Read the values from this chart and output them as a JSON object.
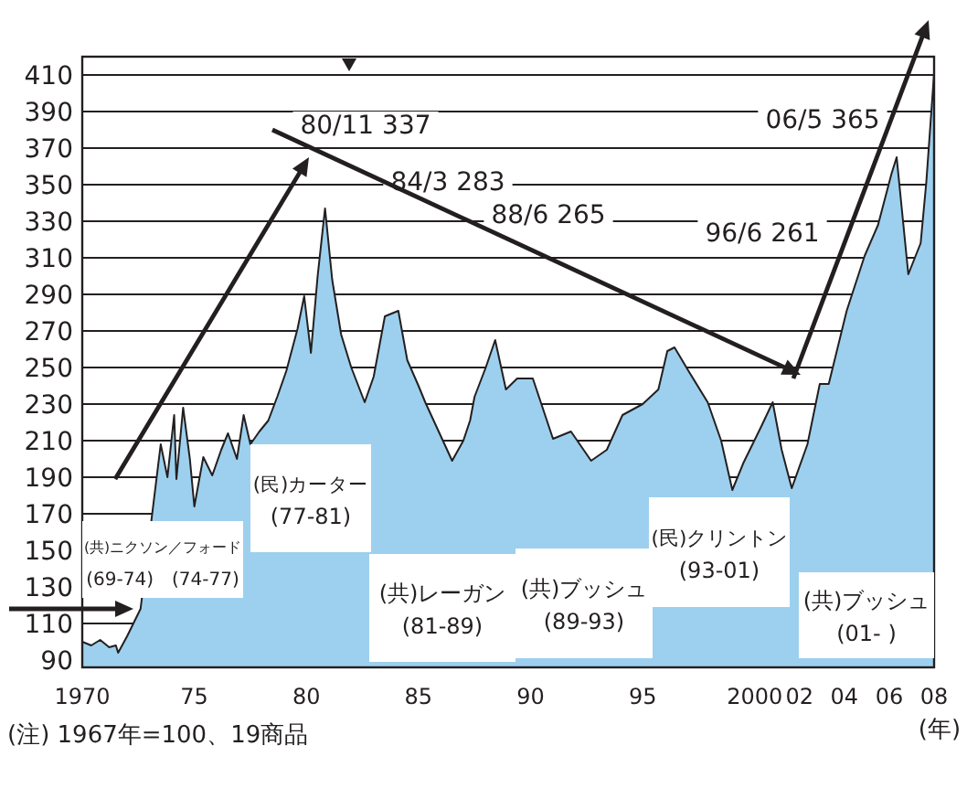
{
  "chart_data": {
    "type": "area",
    "xlabel": "(年)",
    "annotations": [
      "80/11 337",
      "84/3 283",
      "88/6 265",
      "96/6 261",
      "06/5 365",
      "(共)ニクソン／フォード\n(69-74)　(74-77)",
      "(民)カーター\n(77-81)",
      "(共)レーガン\n(81-89)",
      "(共)ブッシュ\n(89-93)",
      "(民)クリントン\n(93-01)",
      "(共)ブッシュ\n(01- )",
      "(注) 1967年=100、19商品"
    ],
    "x": [
      1970.0,
      1970.4,
      1970.8,
      1971.2,
      1971.5,
      1971.6,
      1972.0,
      1972.6,
      1973.5,
      1973.8,
      1974.1,
      1974.2,
      1974.5,
      1974.8,
      1975.0,
      1975.4,
      1975.8,
      1976.2,
      1976.5,
      1976.9,
      1977.2,
      1977.5,
      1977.9,
      1978.3,
      1978.7,
      1979.1,
      1979.6,
      1979.9,
      1980.2,
      1980.5,
      1980.83,
      1981.15,
      1981.55,
      1982.0,
      1982.6,
      1983.0,
      1983.5,
      1984.1,
      1984.5,
      1985.0,
      1985.3,
      1985.9,
      1986.5,
      1987.0,
      1987.3,
      1987.5,
      1988.0,
      1988.42,
      1988.9,
      1989.4,
      1990.1,
      1991.0,
      1991.8,
      1992.7,
      1993.4,
      1994.1,
      1995.0,
      1995.7,
      1996.1,
      1996.42,
      1997.05,
      1997.9,
      1998.5,
      1999.0,
      1999.5,
      2000.3,
      2000.8,
      2001.2,
      2001.65,
      2002.35,
      2002.9,
      2003.3,
      2004.1,
      2004.9,
      2005.5,
      2006.1,
      2006.33,
      2006.85,
      2007.4,
      2007.65,
      2008.0
    ],
    "series": [
      {
        "color": "#9dd0ee",
        "values": [
          100,
          98,
          101,
          97,
          98,
          94,
          103,
          118,
          208,
          190,
          224,
          189,
          228,
          200,
          174,
          201,
          191,
          205,
          214,
          200,
          224,
          208,
          215,
          221,
          234,
          248,
          271,
          289,
          258,
          300,
          337,
          298,
          268,
          250,
          231,
          245,
          278,
          281,
          254,
          240,
          231,
          215,
          199,
          210,
          221,
          234,
          250,
          265,
          238,
          244,
          244,
          211,
          215,
          199,
          205,
          224,
          230,
          238,
          259,
          261,
          248,
          231,
          210,
          183,
          198,
          218,
          231,
          205,
          184,
          208,
          241,
          241,
          281,
          311,
          328,
          356,
          365,
          301,
          318,
          351,
          411
        ]
      }
    ],
    "xlim": [
      1970,
      2008
    ],
    "ylim": [
      86,
      420
    ],
    "xticks": [
      {
        "value": 1970,
        "label": "1970"
      },
      {
        "value": 1975,
        "label": "75"
      },
      {
        "value": 1980,
        "label": "80"
      },
      {
        "value": 1985,
        "label": "85"
      },
      {
        "value": 1990,
        "label": "90"
      },
      {
        "value": 1995,
        "label": "95"
      },
      {
        "value": 2000,
        "label": "2000"
      },
      {
        "value": 2002,
        "label": "02"
      },
      {
        "value": 2004,
        "label": "04"
      },
      {
        "value": 2006,
        "label": "06"
      },
      {
        "value": 2008,
        "label": "08"
      }
    ],
    "yticks": [
      90,
      110,
      130,
      150,
      170,
      190,
      210,
      230,
      250,
      270,
      290,
      310,
      330,
      350,
      370,
      390,
      410
    ],
    "grid": "y"
  }
}
